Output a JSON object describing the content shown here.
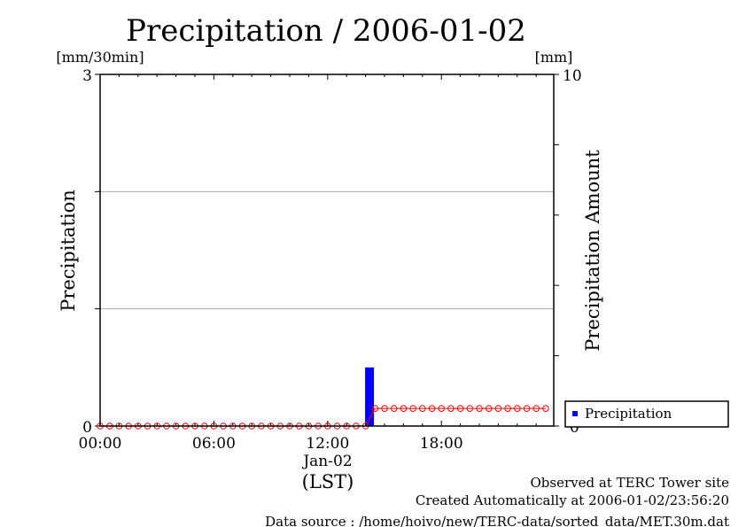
{
  "chart_data": {
    "type": "bar",
    "title": "Precipitation / 2006-01-02",
    "ylabel": "Precipitation",
    "y2label": "Precipitation Amount",
    "yunit": "[mm/30min]",
    "y2unit": "[mm]",
    "ylim": [
      0,
      3
    ],
    "y2lim": [
      0,
      10
    ],
    "xlim_hours": [
      0,
      23.5
    ],
    "x_ticks": [
      {
        "hour": 0,
        "label": "00:00"
      },
      {
        "hour": 6,
        "label": "06:00"
      },
      {
        "hour": 12,
        "label": "12:00"
      },
      {
        "hour": 18,
        "label": "18:00"
      }
    ],
    "x_date_label": "Jan-02",
    "x_zone_label": "(LST)",
    "y_tick_labels": [
      "0",
      "3"
    ],
    "y2_tick_labels": [
      "0",
      "10"
    ],
    "grid": true,
    "legend_position": "bottom-right outside",
    "series": [
      {
        "name": "Precipitation",
        "kind": "bar",
        "color": "#0000ff",
        "bars": [
          {
            "hour": 14.0,
            "value": 0.5
          }
        ]
      },
      {
        "kind": "line-markers",
        "axis": "y2",
        "color": "#ff0000",
        "times": [
          0,
          0.5,
          1,
          1.5,
          2,
          2.5,
          3,
          3.5,
          4,
          4.5,
          5,
          5.5,
          6,
          6.5,
          7,
          7.5,
          8,
          8.5,
          9,
          9.5,
          10,
          10.5,
          11,
          11.5,
          12,
          12.5,
          13,
          13.5,
          14,
          14.5,
          15,
          15.5,
          16,
          16.5,
          17,
          17.5,
          18,
          18.5,
          19,
          19.5,
          20,
          20.5,
          21,
          21.5,
          22,
          22.5,
          23,
          23.5
        ],
        "values": [
          0,
          0,
          0,
          0,
          0,
          0,
          0,
          0,
          0,
          0,
          0,
          0,
          0,
          0,
          0,
          0,
          0,
          0,
          0,
          0,
          0,
          0,
          0,
          0,
          0,
          0,
          0,
          0,
          0,
          0.5,
          0.5,
          0.5,
          0.5,
          0.5,
          0.5,
          0.5,
          0.5,
          0.5,
          0.5,
          0.5,
          0.5,
          0.5,
          0.5,
          0.5,
          0.5,
          0.5,
          0.5,
          0.5
        ]
      }
    ]
  },
  "footer": {
    "line1": "Observed at TERC Tower site",
    "line2": "Created Automatically at 2006-01-02/23:56:20",
    "line3": "Data source : /home/hoivo/new/TERC-data/sorted_data/MET.30m.dat"
  }
}
